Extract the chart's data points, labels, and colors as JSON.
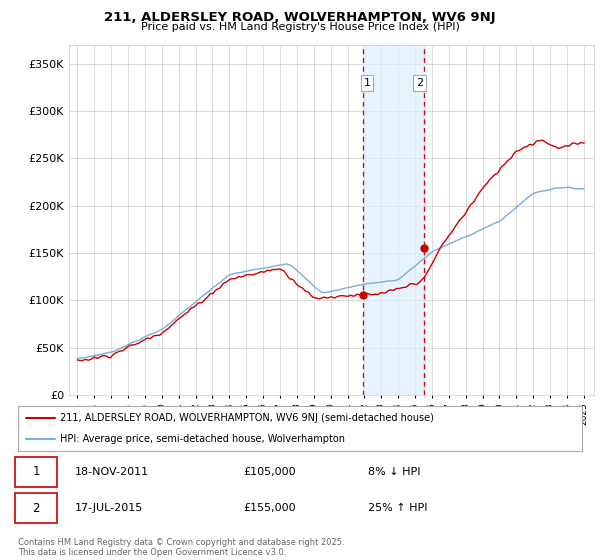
{
  "title": "211, ALDERSLEY ROAD, WOLVERHAMPTON, WV6 9NJ",
  "subtitle": "Price paid vs. HM Land Registry's House Price Index (HPI)",
  "legend_line1": "211, ALDERSLEY ROAD, WOLVERHAMPTON, WV6 9NJ (semi-detached house)",
  "legend_line2": "HPI: Average price, semi-detached house, Wolverhampton",
  "transaction1_date": "18-NOV-2011",
  "transaction1_price": "£105,000",
  "transaction1_hpi": "8% ↓ HPI",
  "transaction2_date": "17-JUL-2015",
  "transaction2_price": "£155,000",
  "transaction2_hpi": "25% ↑ HPI",
  "footer": "Contains HM Land Registry data © Crown copyright and database right 2025.\nThis data is licensed under the Open Government Licence v3.0.",
  "ylim": [
    0,
    370000
  ],
  "yticks": [
    0,
    50000,
    100000,
    150000,
    200000,
    250000,
    300000,
    350000
  ],
  "red_line_color": "#cc0000",
  "blue_line_color": "#7aaddc",
  "shaded_region_color": "#ddeeff",
  "vline_color": "#dd0000",
  "grid_color": "#cccccc",
  "transaction1_x": 2011.89,
  "transaction1_y": 105000,
  "transaction2_x": 2015.54,
  "transaction2_y": 155000,
  "shade_x1": 2011.89,
  "shade_x2": 2015.54,
  "xmin": 1994.5,
  "xmax": 2025.6
}
